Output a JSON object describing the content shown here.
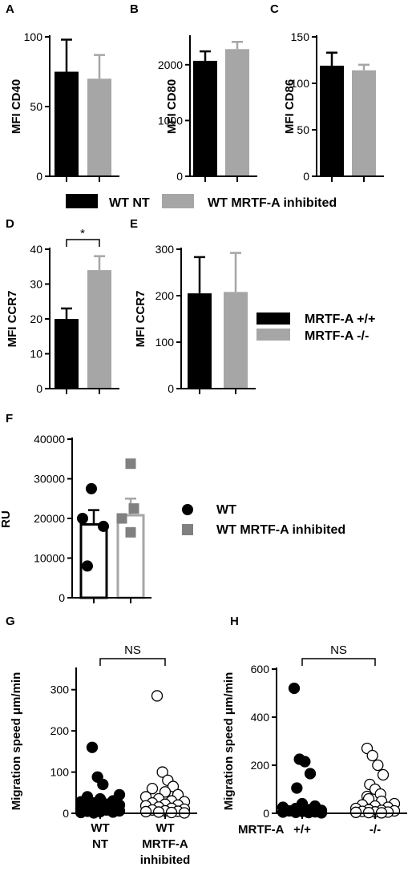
{
  "colors": {
    "black": "#000000",
    "grey": "#a6a6a6",
    "grey_square": "#808080",
    "white": "#ffffff"
  },
  "legend_top": {
    "items": [
      "WT NT",
      "WT MRTF-A inhibited"
    ]
  },
  "legend_mid": {
    "items": [
      "MRTF-A +/+",
      "MRTF-A -/-"
    ]
  },
  "legend_f": {
    "items": [
      "WT",
      "WT MRTF-A inhibited"
    ]
  },
  "chart_data": [
    {
      "id": "A",
      "type": "bar",
      "ylabel": "MFI CD40",
      "ylim": [
        0,
        100
      ],
      "yticks": [
        0,
        50,
        100
      ],
      "categories": [
        "WT NT",
        "WT MRTF-A inhibited"
      ],
      "values": [
        75,
        70
      ],
      "errors": [
        23,
        17
      ]
    },
    {
      "id": "B",
      "type": "bar",
      "ylabel": "MFI CD80",
      "ylim": [
        0,
        2500
      ],
      "yticks": [
        0,
        1000,
        2000
      ],
      "categories": [
        "WT NT",
        "WT MRTF-A inhibited"
      ],
      "values": [
        2070,
        2280
      ],
      "errors": [
        170,
        130
      ]
    },
    {
      "id": "C",
      "type": "bar",
      "ylabel": "MFI CD86",
      "ylim": [
        0,
        150
      ],
      "yticks": [
        0,
        50,
        100,
        150
      ],
      "categories": [
        "WT NT",
        "WT MRTF-A inhibited"
      ],
      "values": [
        119,
        114
      ],
      "errors": [
        14,
        6
      ]
    },
    {
      "id": "D",
      "type": "bar",
      "ylabel": "MFI CCR7",
      "ylim": [
        0,
        40
      ],
      "yticks": [
        0,
        10,
        20,
        30,
        40
      ],
      "categories": [
        "WT NT",
        "WT MRTF-A inhibited"
      ],
      "values": [
        20,
        34
      ],
      "errors": [
        3,
        4
      ],
      "annotation": "*"
    },
    {
      "id": "E",
      "type": "bar",
      "ylabel": "MFI CCR7",
      "ylim": [
        0,
        300
      ],
      "yticks": [
        0,
        100,
        200,
        300
      ],
      "categories": [
        "MRTF-A +/+",
        "MRTF-A -/-"
      ],
      "values": [
        205,
        208
      ],
      "errors": [
        78,
        84
      ]
    },
    {
      "id": "F",
      "type": "bar",
      "ylabel": "RU",
      "ylim": [
        0,
        40000
      ],
      "yticks": [
        0,
        10000,
        20000,
        30000,
        40000
      ],
      "categories": [
        "WT",
        "WT MRTF-A inhibited"
      ],
      "values": [
        18500,
        20800
      ],
      "errors": [
        3600,
        4200
      ],
      "points": [
        [
          27500,
          20000,
          18000,
          8000
        ],
        [
          33800,
          22500,
          20000,
          16500
        ]
      ]
    },
    {
      "id": "G",
      "type": "scatter",
      "ylabel": "Migration speed μm/min",
      "ylim": [
        0,
        350
      ],
      "yticks": [
        0,
        100,
        200,
        300
      ],
      "categories": [
        "WT NT",
        "WT MRTF-A inhibited"
      ],
      "annotation": "NS",
      "points": [
        [
          160,
          88,
          70,
          45,
          40,
          35,
          30,
          28,
          25,
          22,
          20,
          18,
          15,
          14,
          12,
          10,
          8,
          6,
          5,
          4,
          3,
          2,
          1
        ],
        [
          285,
          100,
          80,
          65,
          60,
          52,
          45,
          40,
          35,
          30,
          28,
          25,
          22,
          20,
          18,
          15,
          12,
          10,
          8,
          6,
          5,
          4,
          3,
          2,
          1
        ]
      ]
    },
    {
      "id": "H",
      "type": "scatter",
      "ylabel": "Migration speed μm/min",
      "xprefix": "MRTF-A",
      "ylim": [
        0,
        600
      ],
      "yticks": [
        0,
        200,
        400,
        600
      ],
      "categories": [
        "+/+",
        "-/-"
      ],
      "annotation": "NS",
      "points": [
        [
          520,
          225,
          215,
          165,
          105,
          40,
          30,
          25,
          20,
          15,
          12,
          10,
          8,
          6,
          5,
          4,
          3,
          2
        ],
        [
          270,
          240,
          200,
          160,
          120,
          100,
          80,
          70,
          60,
          50,
          40,
          35,
          30,
          25,
          20,
          15,
          12,
          10,
          8,
          6,
          5,
          4,
          3,
          2
        ]
      ]
    }
  ]
}
